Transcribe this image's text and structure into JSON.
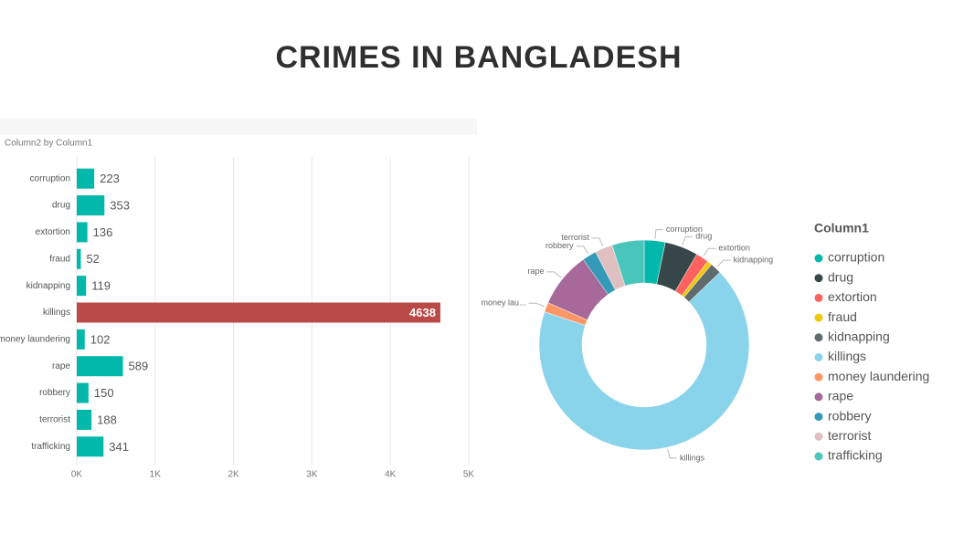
{
  "title": "CRIMES IN BANGLADESH",
  "chart_data": [
    {
      "type": "bar",
      "title": "Column2 by Column1",
      "categories": [
        "corruption",
        "drug",
        "extortion",
        "fraud",
        "kidnapping",
        "killings",
        "money laundering",
        "rape",
        "robbery",
        "terrorist",
        "trafficking"
      ],
      "values": [
        223,
        353,
        136,
        52,
        119,
        4638,
        102,
        589,
        150,
        188,
        341
      ],
      "colors": [
        "#01B8AA",
        "#01B8AA",
        "#01B8AA",
        "#01B8AA",
        "#01B8AA",
        "#B94A48",
        "#01B8AA",
        "#01B8AA",
        "#01B8AA",
        "#01B8AA",
        "#01B8AA"
      ],
      "xlim": [
        0,
        5000
      ],
      "xticks": [
        {
          "value": 0,
          "label": "0K"
        },
        {
          "value": 1000,
          "label": "1K"
        },
        {
          "value": 2000,
          "label": "2K"
        },
        {
          "value": 3000,
          "label": "3K"
        },
        {
          "value": 4000,
          "label": "4K"
        },
        {
          "value": 5000,
          "label": "5K"
        }
      ],
      "grid": true
    },
    {
      "type": "donut",
      "legend_title": "Column1",
      "categories": [
        "corruption",
        "drug",
        "extortion",
        "fraud",
        "kidnapping",
        "killings",
        "money laundering",
        "rape",
        "robbery",
        "terrorist",
        "trafficking"
      ],
      "values": [
        223,
        353,
        136,
        52,
        119,
        4638,
        102,
        589,
        150,
        188,
        341
      ],
      "labels": [
        "corruption",
        "drug",
        "extortion",
        null,
        "kidnapping",
        "killings",
        "money lau...",
        "rape",
        "robbery",
        "terrorist",
        null
      ],
      "colors": [
        "#01B8AA",
        "#374649",
        "#FD625E",
        "#F2C80F",
        "#5F6B6D",
        "#8AD4EB",
        "#FE9666",
        "#A66999",
        "#3599B8",
        "#DFBFBF",
        "#4AC5BB"
      ],
      "legend": "right"
    }
  ]
}
